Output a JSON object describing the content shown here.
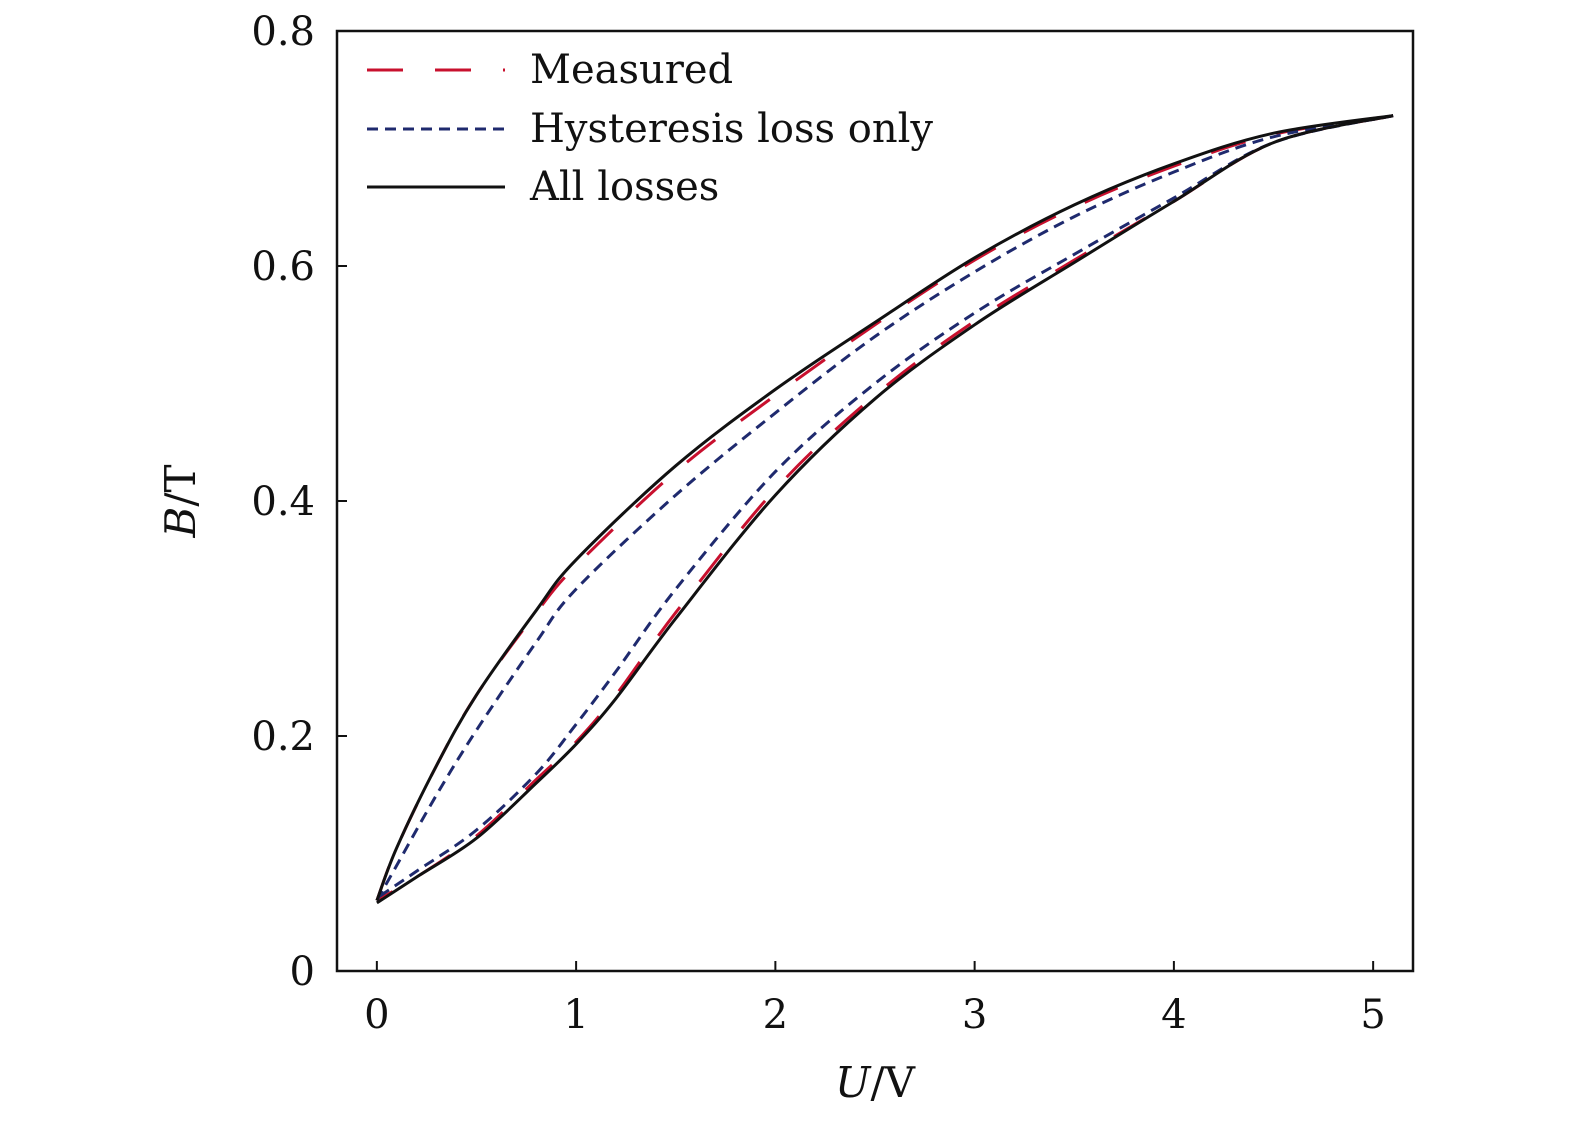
{
  "chart_data": {
    "type": "line",
    "xlabel_var": "U",
    "xlabel_unit": "/V",
    "ylabel_var": "B",
    "ylabel_unit": "/T",
    "xlim": [
      -0.2,
      5.2
    ],
    "ylim": [
      0,
      0.8
    ],
    "xticks": [
      "0",
      "1",
      "2",
      "3",
      "4",
      "5"
    ],
    "yticks": [
      "0",
      "0.2",
      "0.4",
      "0.6",
      "0.8"
    ],
    "grid": false,
    "legend_position": "top-left",
    "series": [
      {
        "name": "Measured",
        "color": "#c8102e",
        "style": "long-dash",
        "upper": [
          [
            0,
            0.06
          ],
          [
            0.1,
            0.105
          ],
          [
            0.3,
            0.175
          ],
          [
            0.5,
            0.235
          ],
          [
            0.8,
            0.305
          ],
          [
            1.0,
            0.345
          ],
          [
            1.5,
            0.425
          ],
          [
            2.0,
            0.49
          ],
          [
            2.5,
            0.55
          ],
          [
            3.0,
            0.605
          ],
          [
            3.5,
            0.65
          ],
          [
            4.0,
            0.685
          ],
          [
            4.5,
            0.712
          ],
          [
            5.1,
            0.728
          ]
        ],
        "lower": [
          [
            5.1,
            0.728
          ],
          [
            4.5,
            0.705
          ],
          [
            4.0,
            0.655
          ],
          [
            3.5,
            0.605
          ],
          [
            3.0,
            0.553
          ],
          [
            2.5,
            0.49
          ],
          [
            2.0,
            0.41
          ],
          [
            1.5,
            0.305
          ],
          [
            1.2,
            0.235
          ],
          [
            1.0,
            0.195
          ],
          [
            0.8,
            0.163
          ],
          [
            0.5,
            0.115
          ],
          [
            0.2,
            0.08
          ],
          [
            0,
            0.06
          ]
        ]
      },
      {
        "name": "Hysteresis loss only",
        "color": "#1f2a6e",
        "style": "short-dash",
        "upper": [
          [
            0,
            0.06
          ],
          [
            0.1,
            0.09
          ],
          [
            0.3,
            0.15
          ],
          [
            0.5,
            0.205
          ],
          [
            0.8,
            0.28
          ],
          [
            1.0,
            0.325
          ],
          [
            1.5,
            0.405
          ],
          [
            2.0,
            0.475
          ],
          [
            2.5,
            0.54
          ],
          [
            3.0,
            0.595
          ],
          [
            3.5,
            0.642
          ],
          [
            4.0,
            0.68
          ],
          [
            4.5,
            0.71
          ],
          [
            5.1,
            0.728
          ]
        ],
        "lower": [
          [
            5.1,
            0.728
          ],
          [
            4.5,
            0.705
          ],
          [
            4.0,
            0.658
          ],
          [
            3.5,
            0.61
          ],
          [
            3.0,
            0.56
          ],
          [
            2.5,
            0.5
          ],
          [
            2.0,
            0.425
          ],
          [
            1.5,
            0.325
          ],
          [
            1.2,
            0.255
          ],
          [
            1.0,
            0.21
          ],
          [
            0.8,
            0.168
          ],
          [
            0.5,
            0.12
          ],
          [
            0.2,
            0.085
          ],
          [
            0,
            0.062
          ]
        ]
      },
      {
        "name": "All losses",
        "color": "#111111",
        "style": "solid",
        "upper": [
          [
            0,
            0.06
          ],
          [
            0.1,
            0.105
          ],
          [
            0.3,
            0.175
          ],
          [
            0.5,
            0.235
          ],
          [
            0.8,
            0.307
          ],
          [
            1.0,
            0.35
          ],
          [
            1.5,
            0.43
          ],
          [
            2.0,
            0.495
          ],
          [
            2.5,
            0.552
          ],
          [
            3.0,
            0.607
          ],
          [
            3.5,
            0.652
          ],
          [
            4.0,
            0.687
          ],
          [
            4.5,
            0.713
          ],
          [
            5.1,
            0.728
          ]
        ],
        "lower": [
          [
            5.1,
            0.728
          ],
          [
            4.5,
            0.705
          ],
          [
            4.0,
            0.655
          ],
          [
            3.5,
            0.603
          ],
          [
            3.0,
            0.55
          ],
          [
            2.5,
            0.487
          ],
          [
            2.0,
            0.405
          ],
          [
            1.5,
            0.3
          ],
          [
            1.2,
            0.232
          ],
          [
            1.0,
            0.193
          ],
          [
            0.8,
            0.16
          ],
          [
            0.5,
            0.113
          ],
          [
            0.2,
            0.08
          ],
          [
            0,
            0.058
          ]
        ]
      }
    ]
  }
}
